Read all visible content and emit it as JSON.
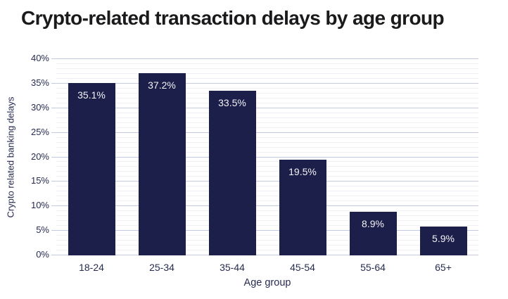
{
  "title": "Crypto-related transaction delays by age group",
  "colors": {
    "background": "#ffffff",
    "title_text": "#1a1a1c",
    "bar": "#1b1f4a",
    "bar_label_text": "#f3f3f5",
    "grid_major": "#c3c9e0",
    "grid_minor": "#efeff4",
    "axis_text": "#272b50"
  },
  "chart_data": {
    "type": "bar",
    "title": "Crypto-related transaction delays by age group",
    "xlabel": "Age group",
    "ylabel": "Crypto related banking delays",
    "categories": [
      "18-24",
      "25-34",
      "35-44",
      "45-54",
      "55-64",
      "65+"
    ],
    "values": [
      35.1,
      37.2,
      33.5,
      19.5,
      8.9,
      5.9
    ],
    "value_labels": [
      "35.1%",
      "37.2%",
      "33.5%",
      "19.5%",
      "8.9%",
      "5.9%"
    ],
    "ylim": [
      0,
      40
    ],
    "ytick_step_major": 5,
    "ytick_step_minor": 1,
    "ytick_labels": [
      "0%",
      "5%",
      "10%",
      "15%",
      "20%",
      "25%",
      "30%",
      "35%",
      "40%"
    ],
    "grid": "on",
    "legend": "none"
  }
}
